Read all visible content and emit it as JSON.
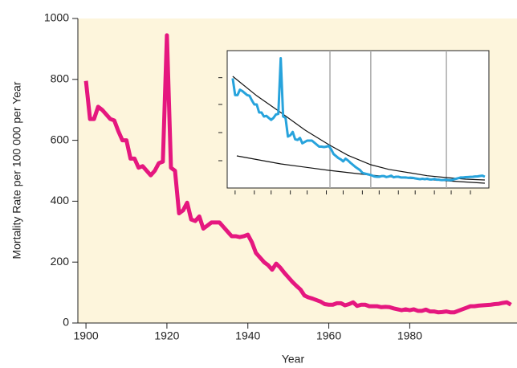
{
  "chart_data": {
    "type": "line",
    "xlabel": "Year",
    "ylabel": "Mortality Rate per 100 000 per Year",
    "color": "#e5177f",
    "background": "#fdf5dc",
    "x": [
      1900,
      1901,
      1902,
      1903,
      1904,
      1905,
      1906,
      1907,
      1908,
      1909,
      1910,
      1911,
      1912,
      1913,
      1914,
      1915,
      1916,
      1917,
      1918,
      1919,
      1920,
      1921,
      1922,
      1923,
      1924,
      1925,
      1926,
      1927,
      1928,
      1929,
      1930,
      1931,
      1932,
      1933,
      1934,
      1935,
      1936,
      1937,
      1938,
      1939,
      1940,
      1941,
      1942,
      1943,
      1944,
      1945,
      1946,
      1947,
      1948,
      1949,
      1950,
      1951,
      1952,
      1953,
      1954,
      1955,
      1956,
      1957,
      1958,
      1959,
      1960,
      1961,
      1962,
      1963,
      1964,
      1965,
      1966,
      1967,
      1968,
      1969,
      1970,
      1971,
      1972,
      1973,
      1974,
      1975,
      1976,
      1977,
      1978,
      1979,
      1980,
      1981,
      1982,
      1983,
      1984,
      1985,
      1986,
      1987,
      1988,
      1989,
      1990,
      1991,
      1992,
      1993,
      1994,
      1995,
      1996,
      1997,
      1998,
      1999,
      2000,
      2001,
      2002,
      2003,
      2004,
      2005
    ],
    "values": [
      795,
      670,
      670,
      710,
      700,
      685,
      670,
      665,
      630,
      600,
      600,
      540,
      540,
      510,
      515,
      500,
      485,
      500,
      525,
      530,
      945,
      510,
      500,
      360,
      370,
      395,
      340,
      335,
      350,
      310,
      320,
      330,
      330,
      330,
      315,
      300,
      285,
      285,
      282,
      285,
      290,
      265,
      230,
      215,
      200,
      190,
      175,
      195,
      182,
      165,
      150,
      135,
      122,
      110,
      90,
      84,
      80,
      75,
      70,
      62,
      60,
      60,
      65,
      65,
      58,
      62,
      68,
      56,
      60,
      60,
      55,
      55,
      55,
      52,
      53,
      52,
      48,
      45,
      42,
      45,
      42,
      45,
      40,
      40,
      44,
      38,
      38,
      35,
      36,
      38,
      35,
      35,
      40,
      45,
      50,
      55,
      55,
      57,
      58,
      59,
      60,
      62,
      63,
      66,
      68,
      60
    ],
    "xlim": [
      1898,
      2006.5
    ],
    "ylim": [
      0,
      1000
    ],
    "xticks": [
      1900,
      1920,
      1940,
      1960,
      1980
    ],
    "yticks": [
      0,
      200,
      400,
      600,
      800,
      1000
    ],
    "inset": {
      "color": "#27a3dc",
      "curve_color": "#111111",
      "vline_color": "#aaaaaa",
      "xlim": [
        1897.7,
        2006.7
      ],
      "ylim": [
        -24,
        1002
      ],
      "xticks": [
        1901,
        1909,
        1916,
        1924,
        1931,
        1939,
        1946,
        1954,
        1961,
        1969,
        1976,
        1984,
        1991,
        1999
      ],
      "yticks": [
        800,
        600,
        390,
        180
      ],
      "vlines": [
        1940.5,
        1957.5,
        1989
      ],
      "curves": [
        {
          "x": [
            1900,
            1910,
            1920,
            1930,
            1940,
            1948,
            1957.5,
            1965,
            1973.6,
            1981,
            1989,
            1997,
            2005
          ],
          "values": [
            810,
            665,
            540,
            410,
            300,
            220,
            150,
            115,
            90,
            68,
            54,
            42,
            36
          ]
        },
        {
          "x": [
            1901.7,
            1920,
            1940,
            1957.5,
            1973.6,
            1989,
            2005
          ],
          "values": [
            216,
            156,
            108,
            72,
            48,
            30,
            12
          ]
        }
      ]
    }
  }
}
